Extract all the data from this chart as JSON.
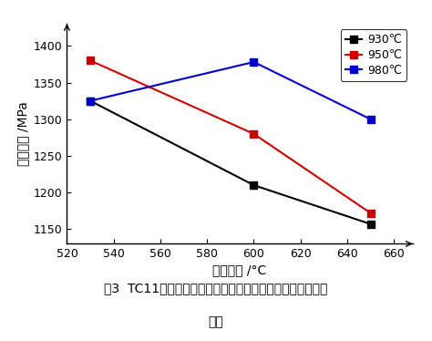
{
  "x_values": [
    530,
    600,
    650
  ],
  "series": [
    {
      "label": "930℃",
      "color": "#000000",
      "marker": "s",
      "y": [
        1325,
        1210,
        1157
      ]
    },
    {
      "label": "950℃",
      "color": "#cc0000",
      "marker": "s",
      "y": [
        1380,
        1280,
        1172
      ]
    },
    {
      "label": "980℃",
      "color": "#0000cc",
      "marker": "s",
      "y": [
        1325,
        1378,
        1300
      ]
    }
  ],
  "xlabel": "时效温度 /°C",
  "ylabel": "抗拉强度 /MPa",
  "xlim": [
    520,
    668
  ],
  "ylim": [
    1130,
    1430
  ],
  "xticks": [
    520,
    540,
    560,
    580,
    600,
    620,
    640,
    660
  ],
  "yticks": [
    1150,
    1200,
    1250,
    1300,
    1350,
    1400
  ],
  "caption_line1": "图3  TC11钓合金不同固溶温度和时效温度下的抗拉强度变化",
  "caption_line2": "曲线",
  "background_color": "#ffffff",
  "marker_size": 6,
  "linewidth": 1.5
}
